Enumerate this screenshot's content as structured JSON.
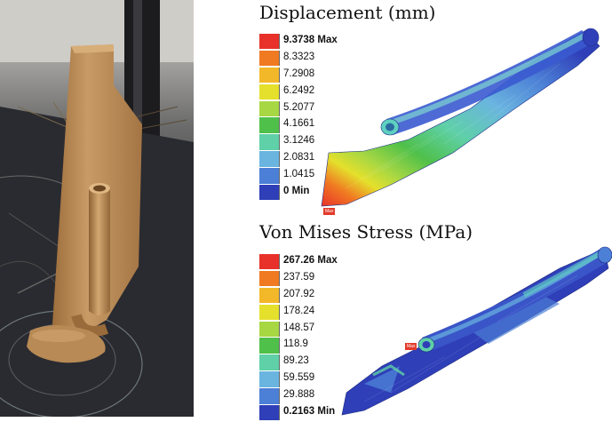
{
  "displacement": {
    "title": "Displacement (mm)",
    "legend": [
      {
        "label": "9.3738 Max",
        "color": "#e8312a"
      },
      {
        "label": "8.3323",
        "color": "#f07a22"
      },
      {
        "label": "7.2908",
        "color": "#f3b82a"
      },
      {
        "label": "6.2492",
        "color": "#e4e02c"
      },
      {
        "label": "5.2077",
        "color": "#a7d743"
      },
      {
        "label": "4.1661",
        "color": "#4fc04a"
      },
      {
        "label": "3.1246",
        "color": "#5fd0a8"
      },
      {
        "label": "2.0831",
        "color": "#6ab4e0"
      },
      {
        "label": "1.0415",
        "color": "#4c7fd6"
      },
      {
        "label": "0 Min",
        "color": "#2f3fb8"
      }
    ],
    "probe_tag": "Max"
  },
  "stress": {
    "title": "Von Mises Stress (MPa)",
    "legend": [
      {
        "label": "267.26 Max",
        "color": "#e8312a"
      },
      {
        "label": "237.59",
        "color": "#f07a22"
      },
      {
        "label": "207.92",
        "color": "#f3b82a"
      },
      {
        "label": "178.24",
        "color": "#e4e02c"
      },
      {
        "label": "148.57",
        "color": "#a7d743"
      },
      {
        "label": "118.9",
        "color": "#4fc04a"
      },
      {
        "label": "89.23",
        "color": "#5fd0a8"
      },
      {
        "label": "59.559",
        "color": "#6ab4e0"
      },
      {
        "label": "29.888",
        "color": "#4c7fd6"
      },
      {
        "label": "0.2163 Min",
        "color": "#2f3fb8"
      }
    ],
    "probe_tag": "Max"
  },
  "photo": {
    "icon": "3d-printed-part-photo"
  }
}
